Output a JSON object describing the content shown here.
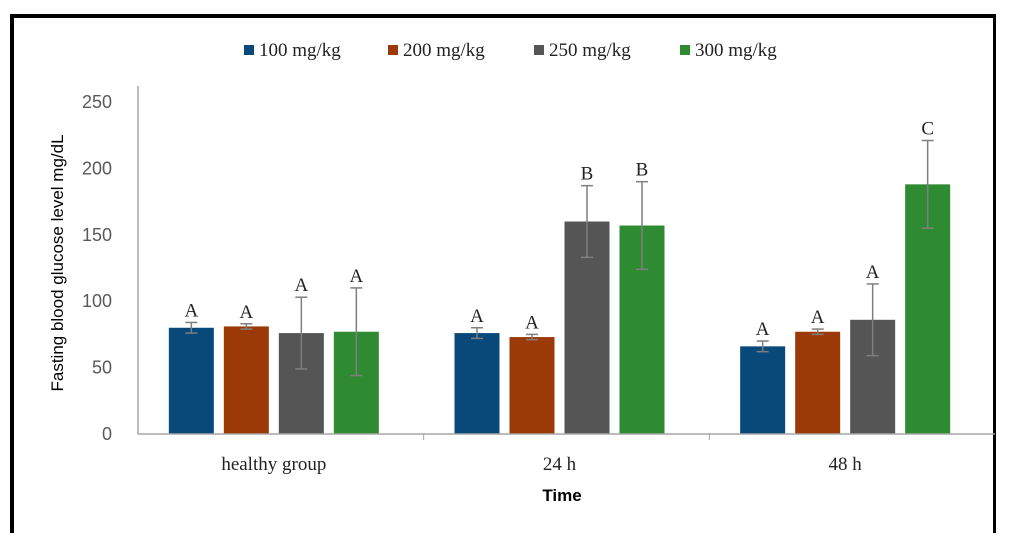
{
  "chart_data": {
    "type": "bar",
    "title": "",
    "xlabel": "Time",
    "ylabel": "Fasting blood glucose level mg/dL",
    "ylim": [
      0,
      250
    ],
    "yticks": [
      0,
      50,
      100,
      150,
      200,
      250
    ],
    "categories": [
      "healthy group",
      "24 h",
      "48 h"
    ],
    "legend_position": "top",
    "grid": false,
    "series": [
      {
        "name": "100 mg/kg",
        "color": "#08497a",
        "values": [
          80,
          76,
          66
        ],
        "errors": [
          4,
          4,
          4
        ],
        "labels": [
          "A",
          "A",
          "A"
        ]
      },
      {
        "name": "200 mg/kg",
        "color": "#9b3a06",
        "values": [
          81,
          73,
          77
        ],
        "errors": [
          2,
          2,
          2
        ],
        "labels": [
          "A",
          "A",
          "A"
        ]
      },
      {
        "name": "250 mg/kg",
        "color": "#555555",
        "values": [
          76,
          160,
          86
        ],
        "errors": [
          27,
          27,
          27
        ],
        "labels": [
          "A",
          "B",
          "A"
        ]
      },
      {
        "name": "300 mg/kg",
        "color": "#2e8b32",
        "values": [
          77,
          157,
          188
        ],
        "errors": [
          33,
          33,
          33
        ],
        "labels": [
          "A",
          "B",
          "C"
        ]
      }
    ]
  }
}
